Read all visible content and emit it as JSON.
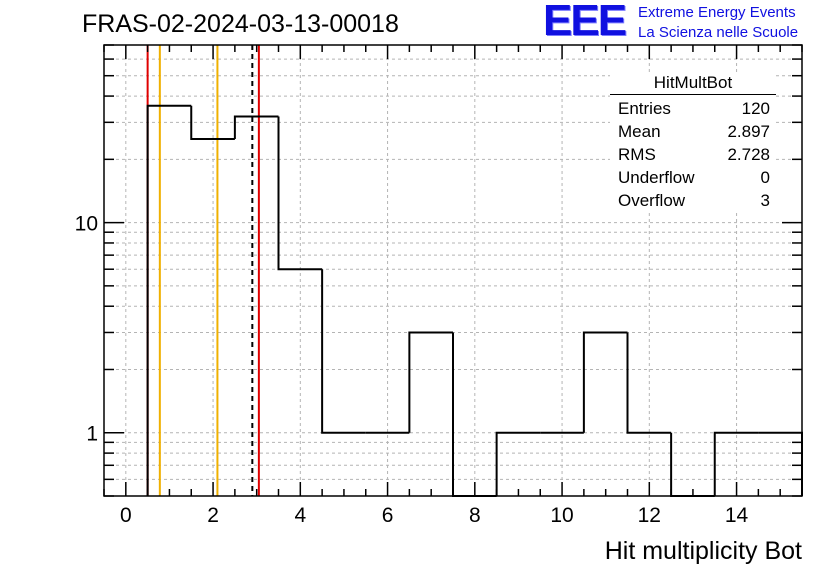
{
  "run_title": "FRAS-02-2024-03-13-00018",
  "logo": {
    "mark": "EEE",
    "line1": "Extreme Energy Events",
    "line2": "La Scienza nelle Scuole",
    "color": "#1010e0"
  },
  "stats": {
    "title": "HitMultBot",
    "rows": [
      {
        "label": "Entries",
        "value": "120"
      },
      {
        "label": "Mean",
        "value": "2.897"
      },
      {
        "label": "RMS",
        "value": "2.728"
      },
      {
        "label": "Underflow",
        "value": "0"
      },
      {
        "label": "Overflow",
        "value": "3"
      }
    ]
  },
  "chart_data": {
    "type": "histogram",
    "xlabel": "Hit multiplicity Bot",
    "ylabel": "",
    "xlim": [
      -0.5,
      15.5
    ],
    "ylim": [
      0.5,
      70
    ],
    "y_log_scale": true,
    "grid": true,
    "x_ticks": [
      0,
      2,
      4,
      6,
      8,
      10,
      12,
      14
    ],
    "x_tick_labels": [
      "0",
      "2",
      "4",
      "6",
      "8",
      "10",
      "12",
      "14"
    ],
    "y_ticks": [
      1,
      10
    ],
    "y_tick_labels": [
      "1",
      "10"
    ],
    "bin_width": 1,
    "bin_centers": [
      1,
      2,
      3,
      4,
      5,
      6,
      7,
      8,
      9,
      10,
      11,
      12,
      13,
      14,
      15
    ],
    "bin_counts": [
      36,
      25,
      32,
      6,
      1,
      1,
      3,
      0,
      1,
      1,
      3,
      1,
      0,
      1,
      1
    ],
    "line_color": "#000000",
    "vertical_lines": [
      {
        "x": 0.5,
        "color": "#e00000",
        "style": "solid"
      },
      {
        "x": 0.78,
        "color": "#f0b000",
        "style": "solid"
      },
      {
        "x": 2.1,
        "color": "#f0b000",
        "style": "solid"
      },
      {
        "x": 2.9,
        "color": "#000000",
        "style": "dashed"
      },
      {
        "x": 3.05,
        "color": "#e00000",
        "style": "solid"
      }
    ]
  }
}
